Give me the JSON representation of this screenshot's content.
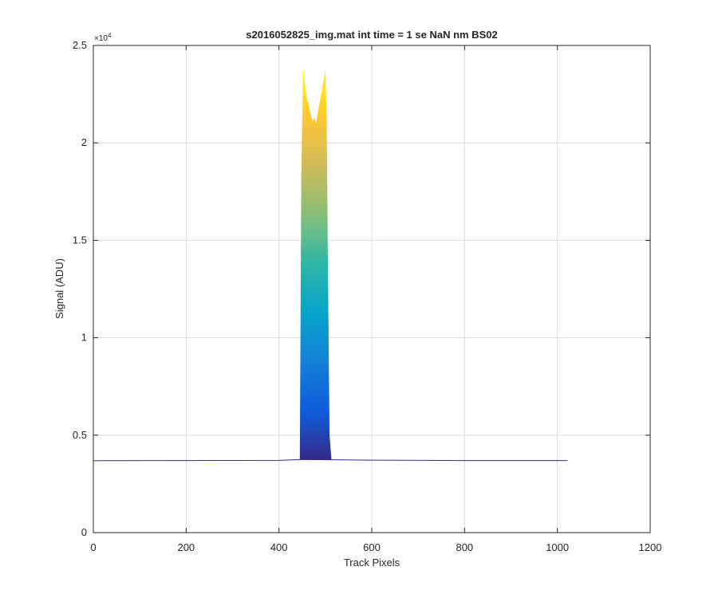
{
  "chart_data": {
    "type": "area",
    "title": "s2016052825_img.mat int time = 1 se  NaN nm BS02",
    "xlabel": "Track Pixels",
    "ylabel": "Signal (ADU)",
    "exponent_label": "×10",
    "exponent_power": "4",
    "xlim": [
      0,
      1200
    ],
    "ylim": [
      0,
      25000
    ],
    "x_ticks": [
      0,
      200,
      400,
      600,
      800,
      1000,
      1200
    ],
    "y_ticks": [
      0,
      5000,
      10000,
      15000,
      20000,
      25000
    ],
    "x_tick_labels": [
      "0",
      "200",
      "400",
      "600",
      "800",
      "1000",
      "1200"
    ],
    "y_tick_labels": [
      "0",
      "0.5",
      "1",
      "1.5",
      "2",
      "2.5"
    ],
    "grid": true,
    "colormap": [
      "#352a87",
      "#0f5cdd",
      "#1481d6",
      "#06a4ca",
      "#2eb7a4",
      "#87bf77",
      "#d1bb59",
      "#fec832",
      "#f9fb0e"
    ],
    "baseline": {
      "x": [
        0,
        200,
        400,
        445,
        515,
        600,
        800,
        1022
      ],
      "y": [
        3690,
        3700,
        3710,
        3750,
        3740,
        3720,
        3700,
        3700
      ]
    },
    "peak_profile": {
      "x": [
        445,
        448,
        452,
        456,
        460,
        464,
        468,
        472,
        476,
        480,
        484,
        488,
        492,
        496,
        500,
        503,
        505,
        509,
        513
      ],
      "y": [
        3800,
        18000,
        23900,
        23000,
        22300,
        22000,
        21500,
        21100,
        21300,
        21000,
        21600,
        22100,
        22600,
        23200,
        23800,
        21000,
        15000,
        5000,
        3800
      ]
    }
  }
}
